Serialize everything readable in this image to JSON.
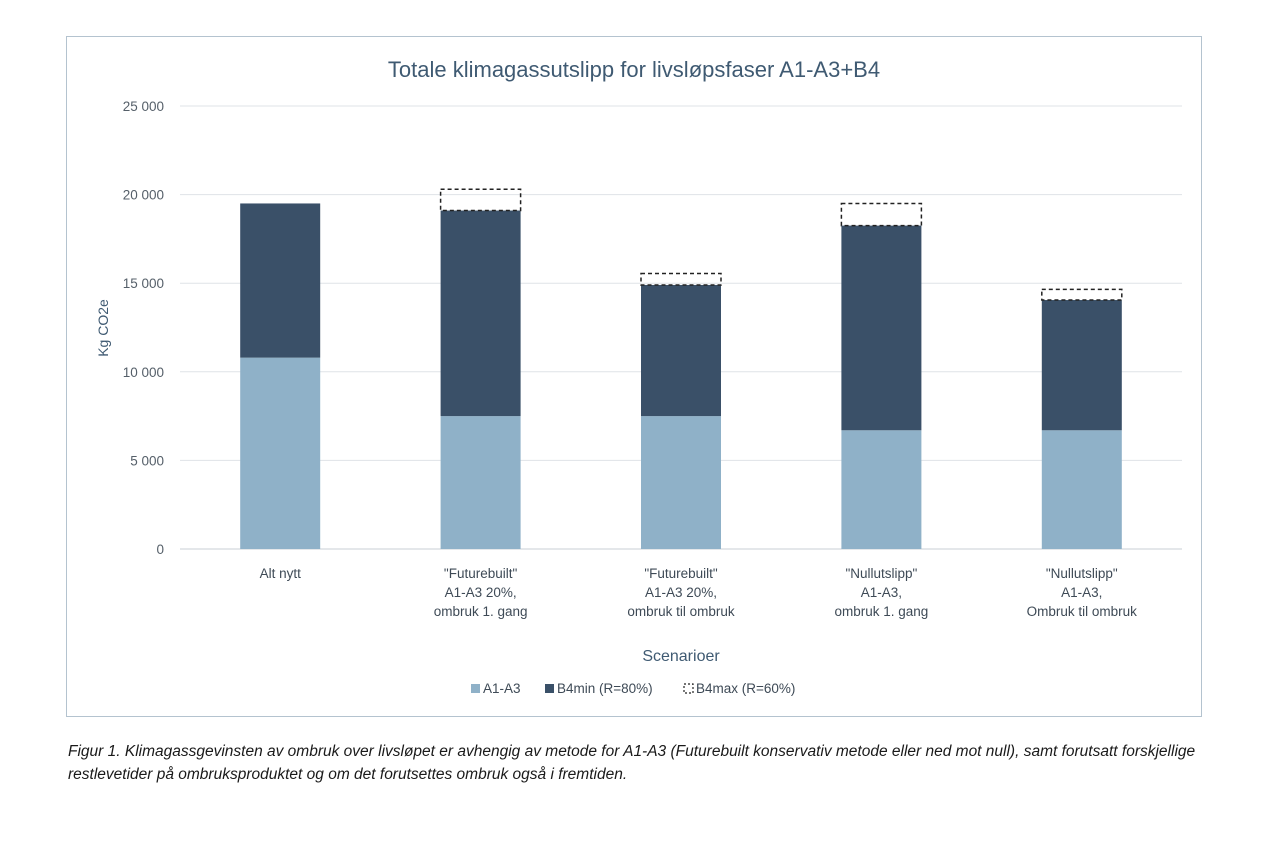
{
  "chart_data": {
    "type": "bar",
    "stacked": true,
    "title": "Totale klimagassutslipp for livsløpsfaser A1-A3+B4",
    "xlabel": "Scenarioer",
    "ylabel": "Kg CO2e",
    "ylim": [
      0,
      25000
    ],
    "yticks": [
      0,
      5000,
      10000,
      15000,
      20000,
      25000
    ],
    "ytick_labels": [
      "0",
      "5 000",
      "10 000",
      "15 000",
      "20 000",
      "25 000"
    ],
    "grid": true,
    "legend_position": "bottom",
    "categories": [
      [
        "Alt nytt"
      ],
      [
        "\"Futurebuilt\"",
        "A1-A3 20%,",
        "ombruk 1. gang"
      ],
      [
        "\"Futurebuilt\"",
        "A1-A3 20%,",
        "ombruk til ombruk"
      ],
      [
        "\"Nullutslipp\"",
        "A1-A3,",
        "ombruk 1. gang"
      ],
      [
        "\"Nullutslipp\"",
        "A1-A3,",
        "Ombruk til ombruk"
      ]
    ],
    "series": [
      {
        "name": "A1-A3",
        "color": "#8fb1c8",
        "style": "solid",
        "values": [
          10800,
          7500,
          7500,
          6700,
          6700
        ]
      },
      {
        "name": "B4min (R=80%)",
        "color": "#3a5068",
        "style": "solid",
        "values": [
          8700,
          11600,
          7400,
          11550,
          7350
        ]
      },
      {
        "name": "B4max (R=60%)",
        "color": "#222222",
        "style": "dashed",
        "values": [
          0,
          1200,
          650,
          1250,
          600
        ]
      }
    ]
  },
  "caption": "Figur 1. Klimagassgevinsten av ombruk over livsløpet er avhengig av metode for A1-A3 (Futurebuilt konservativ metode eller ned mot null), samt forutsatt forskjellige restlevetider på ombruksproduktet og om det forutsettes ombruk også i fremtiden."
}
